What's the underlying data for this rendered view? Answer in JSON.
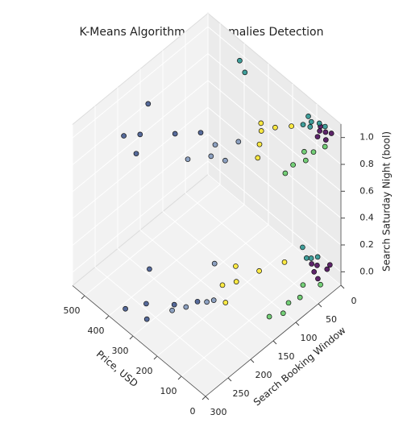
{
  "chart_data": {
    "type": "scatter3d",
    "title": "K-Means Algorithm on Anomalies Detection",
    "x_label": "Price, USD",
    "y_label": "Search Booking Window",
    "z_label": "Search Saturday Night (bool)",
    "xlim": [
      0,
      550
    ],
    "ylim": [
      0,
      300
    ],
    "zlim": [
      -0.1,
      1.1
    ],
    "xticks": [
      0,
      100,
      200,
      300,
      400,
      500
    ],
    "yticks": [
      0,
      50,
      100,
      150,
      200,
      250,
      300
    ],
    "zticks": [
      {
        "value": 0,
        "label": "0.0"
      },
      {
        "value": 0.2,
        "label": "0.2"
      },
      {
        "value": 0.4,
        "label": "0.4"
      },
      {
        "value": 0.6,
        "label": "0.6"
      },
      {
        "value": 0.8,
        "label": "0.8"
      },
      {
        "value": 1,
        "label": "1.0"
      }
    ],
    "grid": true,
    "series": [
      {
        "color": "#440154",
        "x": [
          30,
          45,
          60,
          25,
          70,
          50,
          35,
          55,
          40,
          65,
          30,
          80
        ],
        "y": [
          5,
          10,
          15,
          20,
          8,
          25,
          12,
          30,
          3,
          18,
          35,
          22
        ],
        "z": [
          1,
          1,
          1,
          1,
          1,
          1,
          0,
          0,
          0,
          0,
          0,
          0
        ]
      },
      {
        "color": "#21918c",
        "x": [
          80,
          100,
          120,
          90,
          110,
          60,
          95,
          140,
          85,
          105,
          400,
          360
        ],
        "y": [
          5,
          12,
          8,
          20,
          25,
          3,
          15,
          10,
          6,
          20,
          10,
          20
        ],
        "z": [
          1,
          1,
          1,
          1,
          1,
          1,
          0,
          0,
          0,
          0,
          1,
          1
        ]
      },
      {
        "color": "#5ec962",
        "x": [
          10,
          20,
          15,
          30,
          25,
          40,
          10,
          20,
          30,
          15,
          35,
          45
        ],
        "y": [
          30,
          50,
          70,
          90,
          110,
          60,
          40,
          80,
          100,
          120,
          140,
          60
        ],
        "z": [
          1,
          1,
          1,
          1,
          1,
          1,
          0,
          0,
          0,
          0,
          0,
          0
        ]
      },
      {
        "color": "#fde725",
        "x": [
          130,
          160,
          180,
          150,
          200,
          120,
          140,
          170,
          190,
          210,
          160,
          230
        ],
        "y": [
          40,
          60,
          80,
          100,
          70,
          120,
          50,
          90,
          130,
          150,
          170,
          110
        ],
        "z": [
          1,
          1,
          1,
          1,
          1,
          1,
          0,
          0,
          0,
          0,
          0,
          0
        ]
      },
      {
        "color": "#3b528b",
        "x": [
          350,
          420,
          480,
          380,
          450,
          300,
          260,
          320,
          280,
          400,
          350,
          220
        ],
        "y": [
          180,
          220,
          170,
          250,
          240,
          150,
          230,
          260,
          280,
          210,
          290,
          200
        ],
        "z": [
          1,
          1,
          1,
          1,
          1,
          1,
          0,
          0,
          0,
          0,
          0,
          0
        ]
      },
      {
        "color": "#7b93b8",
        "x": [
          200,
          240,
          260,
          220,
          180,
          280,
          200,
          230,
          190,
          250
        ],
        "y": [
          120,
          150,
          200,
          170,
          160,
          130,
          190,
          220,
          180,
          240
        ],
        "z": [
          1,
          1,
          1,
          1,
          1,
          0,
          0,
          0,
          0,
          0
        ]
      }
    ]
  }
}
